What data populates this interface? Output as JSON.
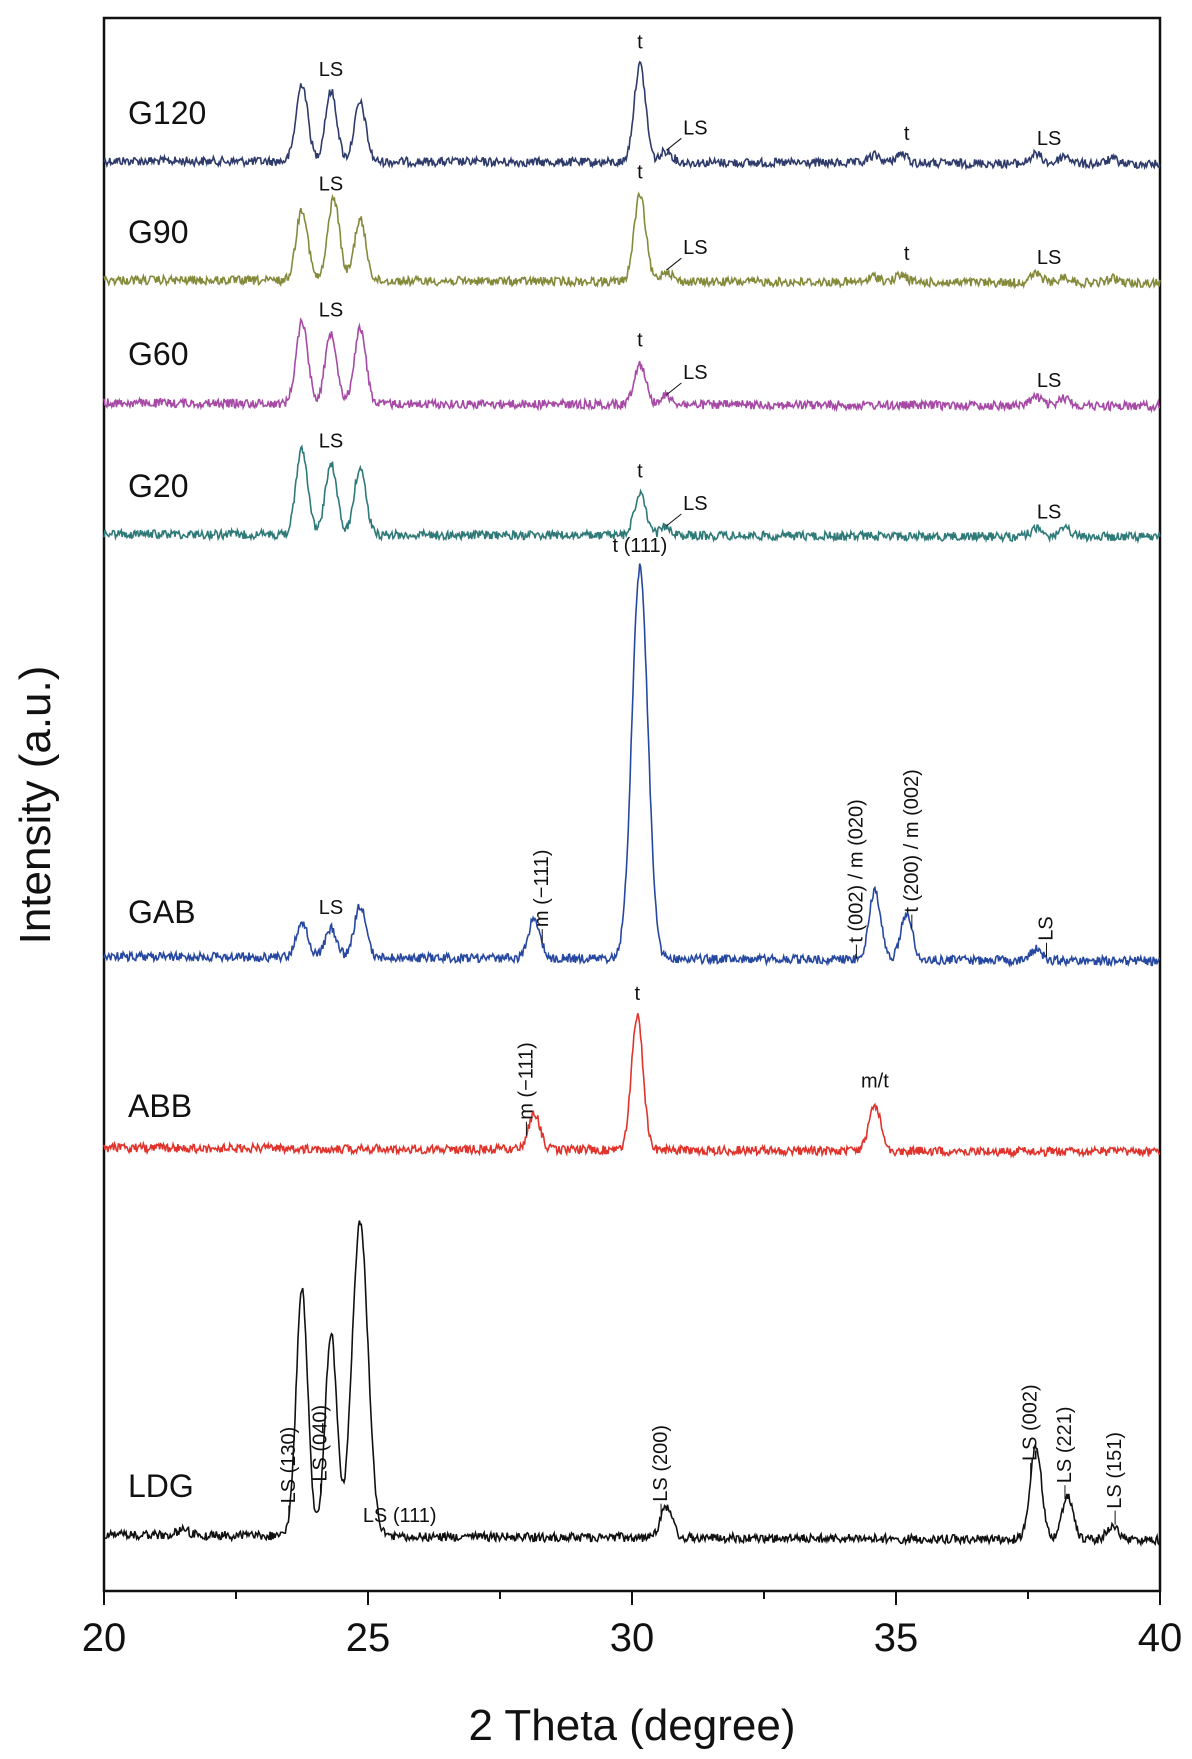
{
  "chart_data": {
    "type": "line",
    "xlabel": "2 Theta (degree)",
    "ylabel": "Intensity (a.u.)",
    "xlim": [
      20,
      40
    ],
    "x_ticks": [
      "20",
      "25",
      "30",
      "35",
      "40"
    ],
    "grid": false,
    "legend": "inline labels at left of each trace",
    "series": [
      {
        "name": "G120",
        "color": "#2e3b6b",
        "peaks": [
          [
            23.75,
            1.0
          ],
          [
            24.3,
            0.9
          ],
          [
            24.85,
            0.75
          ],
          [
            30.15,
            1.25
          ],
          [
            30.65,
            0.15
          ],
          [
            34.6,
            0.1
          ],
          [
            35.1,
            0.12
          ],
          [
            37.65,
            0.12
          ],
          [
            38.2,
            0.1
          ],
          [
            39.1,
            0.06
          ]
        ],
        "annotations": [
          {
            "text": "LS",
            "x": 24.3,
            "rot": false
          },
          {
            "text": "t",
            "x": 30.15,
            "rot": false
          },
          {
            "text": "LS",
            "x": 31.2,
            "rot": false,
            "leader_x": 30.65
          },
          {
            "text": "t",
            "x": 35.2,
            "rot": false
          },
          {
            "text": "LS",
            "x": 37.9,
            "rot": false
          }
        ]
      },
      {
        "name": "G90",
        "color": "#858a3a",
        "peaks": [
          [
            23.75,
            1.0
          ],
          [
            24.35,
            1.15
          ],
          [
            24.85,
            0.85
          ],
          [
            30.15,
            1.2
          ],
          [
            30.65,
            0.15
          ],
          [
            34.6,
            0.08
          ],
          [
            35.1,
            0.1
          ],
          [
            37.65,
            0.12
          ],
          [
            38.2,
            0.08
          ],
          [
            39.1,
            0.06
          ]
        ],
        "annotations": [
          {
            "text": "LS",
            "x": 24.3,
            "rot": false
          },
          {
            "text": "t",
            "x": 30.15,
            "rot": false
          },
          {
            "text": "LS",
            "x": 31.2,
            "rot": false,
            "leader_x": 30.65
          },
          {
            "text": "t",
            "x": 35.2,
            "rot": false
          },
          {
            "text": "LS",
            "x": 37.9,
            "rot": false
          }
        ]
      },
      {
        "name": "G60",
        "color": "#a64aa6",
        "peaks": [
          [
            23.75,
            1.1
          ],
          [
            24.3,
            0.95
          ],
          [
            24.85,
            1.0
          ],
          [
            30.15,
            0.55
          ],
          [
            30.65,
            0.12
          ],
          [
            37.65,
            0.12
          ],
          [
            38.2,
            0.1
          ]
        ],
        "annotations": [
          {
            "text": "LS",
            "x": 24.3,
            "rot": false
          },
          {
            "text": "t",
            "x": 30.15,
            "rot": false
          },
          {
            "text": "LS",
            "x": 31.2,
            "rot": false,
            "leader_x": 30.65
          },
          {
            "text": "LS",
            "x": 37.9,
            "rot": false
          }
        ]
      },
      {
        "name": "G20",
        "color": "#2f7a78",
        "peaks": [
          [
            23.75,
            1.15
          ],
          [
            24.3,
            0.95
          ],
          [
            24.85,
            0.9
          ],
          [
            30.15,
            0.55
          ],
          [
            30.65,
            0.12
          ],
          [
            37.65,
            0.1
          ],
          [
            38.2,
            0.1
          ]
        ],
        "annotations": [
          {
            "text": "LS",
            "x": 24.3,
            "rot": false
          },
          {
            "text": "t",
            "x": 30.15,
            "rot": false
          },
          {
            "text": "LS",
            "x": 31.2,
            "rot": false,
            "leader_x": 30.65
          },
          {
            "text": "LS",
            "x": 37.9,
            "rot": false
          }
        ]
      },
      {
        "name": "GAB",
        "color": "#2748a0",
        "peaks": [
          [
            23.75,
            0.3
          ],
          [
            24.3,
            0.25
          ],
          [
            24.85,
            0.45
          ],
          [
            28.15,
            0.35
          ],
          [
            30.15,
            3.4
          ],
          [
            34.6,
            0.6
          ],
          [
            35.2,
            0.4
          ],
          [
            37.65,
            0.1
          ]
        ],
        "annotations": [
          {
            "text": "LS",
            "x": 24.3,
            "rot": false
          },
          {
            "text": "m (−111)",
            "x": 28.3,
            "rot": true
          },
          {
            "text": "t (111)",
            "x": 30.15,
            "rot": false
          },
          {
            "text": "t (002) / m (020)",
            "x": 34.25,
            "rot": true
          },
          {
            "text": "t (200) / m (002)",
            "x": 35.3,
            "rot": true
          },
          {
            "text": "LS",
            "x": 37.85,
            "rot": true
          }
        ]
      },
      {
        "name": "ABB",
        "color": "#e0332b",
        "peaks": [
          [
            28.15,
            0.35
          ],
          [
            30.1,
            1.3
          ],
          [
            34.6,
            0.45
          ]
        ],
        "annotations": [
          {
            "text": "m (−111)",
            "x": 28.0,
            "rot": true
          },
          {
            "text": "t",
            "x": 30.1,
            "rot": false
          },
          {
            "text": "m/t",
            "x": 34.6,
            "rot": false
          }
        ]
      },
      {
        "name": "LDG",
        "color": "#111111",
        "peaks": [
          [
            21.5,
            0.05
          ],
          [
            23.75,
            2.0
          ],
          [
            24.3,
            1.65
          ],
          [
            24.85,
            2.55
          ],
          [
            30.65,
            0.25
          ],
          [
            37.65,
            0.75
          ],
          [
            38.25,
            0.35
          ],
          [
            39.1,
            0.12
          ]
        ],
        "annotations": [
          {
            "text": "LS (130)",
            "x": 23.5,
            "rot": true
          },
          {
            "text": "LS (040)",
            "x": 24.1,
            "rot": true
          },
          {
            "text": "LS (111)",
            "x": 25.6,
            "rot": false
          },
          {
            "text": "LS (200)",
            "x": 30.55,
            "rot": true
          },
          {
            "text": "LS (002)",
            "x": 37.55,
            "rot": true
          },
          {
            "text": "LS (221)",
            "x": 38.2,
            "rot": true
          },
          {
            "text": "LS (151)",
            "x": 39.15,
            "rot": true
          }
        ]
      }
    ]
  }
}
